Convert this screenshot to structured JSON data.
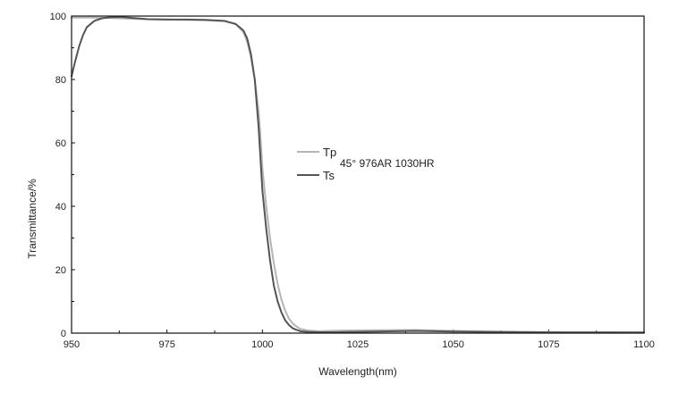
{
  "chart_data": {
    "type": "line",
    "title": "",
    "xlabel": "Wavelength(nm)",
    "ylabel": "Transmittance/%",
    "xlim": [
      950,
      1100
    ],
    "ylim": [
      0,
      100
    ],
    "x_ticks": [
      950,
      975,
      1000,
      1025,
      1050,
      1075,
      1100
    ],
    "x_tick_labels": [
      "950",
      "975",
      "1000",
      "1025",
      "1050",
      "1075",
      "1100"
    ],
    "y_ticks": [
      0,
      20,
      40,
      60,
      80,
      100
    ],
    "y_tick_labels": [
      "0",
      "20",
      "40",
      "60",
      "80",
      "100"
    ],
    "grid": false,
    "legend_position": "center",
    "annotation": "45° 976AR 1030HR",
    "series": [
      {
        "name": "Tp",
        "color": "#b5b5b5",
        "x": [
          950,
          952,
          955,
          960,
          965,
          970,
          975,
          980,
          985,
          990,
          993,
          995,
          996,
          997,
          998,
          999,
          999.5,
          1000,
          1001,
          1002,
          1003,
          1004,
          1005,
          1006,
          1007,
          1008,
          1009,
          1010,
          1012,
          1015,
          1020,
          1030,
          1040,
          1050,
          1060,
          1070,
          1080,
          1090,
          1100
        ],
        "y": [
          99.5,
          99.5,
          99.5,
          99.4,
          99.2,
          99.0,
          98.9,
          98.8,
          98.7,
          98.4,
          97.5,
          95.0,
          92.0,
          87.0,
          80.0,
          70.0,
          62.0,
          52.0,
          40.0,
          30.0,
          22.0,
          15.5,
          10.5,
          7.0,
          4.5,
          3.0,
          2.0,
          1.3,
          0.8,
          0.6,
          0.8,
          0.9,
          1.0,
          0.7,
          0.5,
          0.4,
          0.3,
          0.3,
          0.2
        ]
      },
      {
        "name": "Ts",
        "color": "#555555",
        "x": [
          950,
          951,
          952,
          953,
          954,
          956,
          958,
          960,
          963,
          966,
          970,
          975,
          980,
          985,
          990,
          993,
          995,
          996,
          997,
          998,
          999,
          999.5,
          1000,
          1001,
          1002,
          1003,
          1004,
          1005,
          1006,
          1007,
          1008,
          1009,
          1010,
          1012,
          1015,
          1020,
          1030,
          1040,
          1050,
          1060,
          1070,
          1080,
          1090,
          1100
        ],
        "y": [
          81.0,
          86.0,
          90.5,
          94.0,
          96.5,
          98.5,
          99.3,
          99.6,
          99.7,
          99.4,
          99.0,
          98.9,
          98.9,
          98.8,
          98.5,
          97.5,
          95.5,
          93.0,
          88.0,
          80.0,
          65.0,
          55.0,
          45.0,
          33.0,
          23.0,
          15.0,
          10.0,
          6.5,
          4.0,
          2.5,
          1.5,
          1.0,
          0.6,
          0.4,
          0.3,
          0.3,
          0.5,
          0.7,
          0.5,
          0.4,
          0.3,
          0.2,
          0.2,
          0.2
        ]
      }
    ]
  }
}
